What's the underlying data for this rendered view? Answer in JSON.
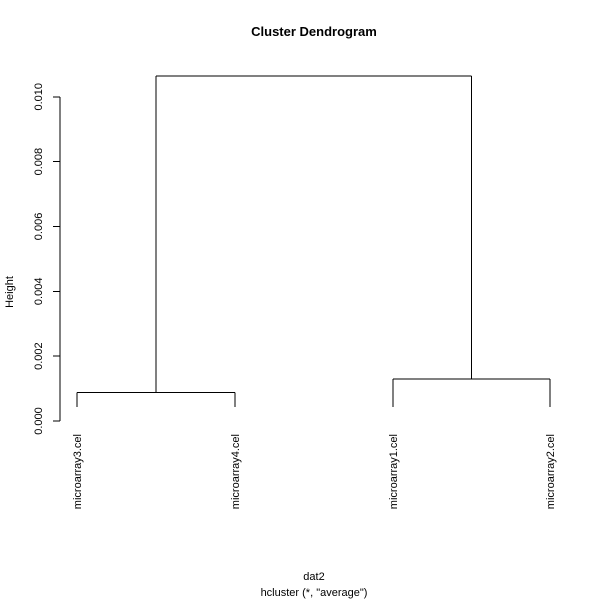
{
  "chart_data": {
    "type": "dendrogram",
    "title": "Cluster Dendrogram",
    "ylabel": "Height",
    "xlabel": "dat2",
    "sublabel": "hcluster (*, \"average\")",
    "ylim": [
      0,
      0.011
    ],
    "yticks": [
      "0.000",
      "0.002",
      "0.004",
      "0.006",
      "0.008",
      "0.010"
    ],
    "ytick_values": [
      0,
      0.002,
      0.004,
      0.006,
      0.008,
      0.01
    ],
    "leaves": [
      "microarray3.cel",
      "microarray4.cel",
      "microarray1.cel",
      "microarray2.cel"
    ],
    "merges": [
      {
        "left": "microarray3.cel",
        "right": "microarray4.cel",
        "height": 0.00088
      },
      {
        "left": "microarray1.cel",
        "right": "microarray2.cel",
        "height": 0.00129
      },
      {
        "left": "cluster-1",
        "right": "cluster-2",
        "height": 0.01064
      }
    ]
  }
}
